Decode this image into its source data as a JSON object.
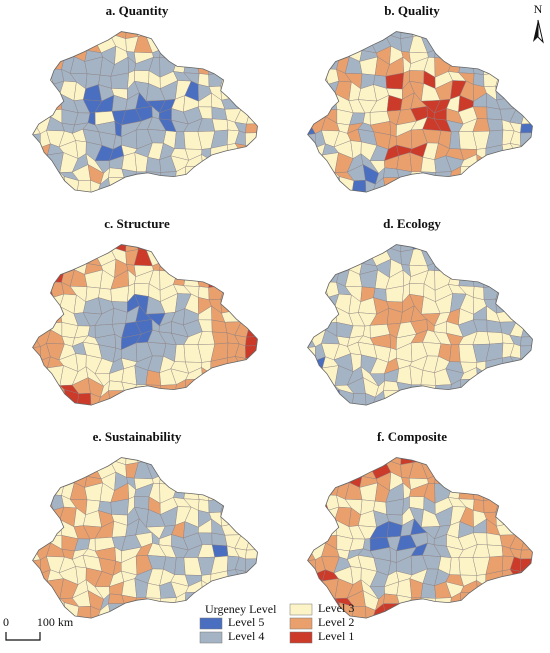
{
  "panels": [
    {
      "title": "a. Quantity"
    },
    {
      "title": "b. Quality"
    },
    {
      "title": "c. Structure"
    },
    {
      "title": "d. Ecology"
    },
    {
      "title": "e. Sustainability"
    },
    {
      "title": "f. Composite"
    }
  ],
  "north": "N",
  "scale_bar": {
    "start": "0",
    "end": "100 km"
  },
  "legend": {
    "title": "Urgeney Level",
    "items": [
      {
        "label": "Level 5",
        "color": "#4a6fc0"
      },
      {
        "label": "Level 4",
        "color": "#a4b4c4"
      },
      {
        "label": "Level 3",
        "color": "#fcf4c6"
      },
      {
        "label": "Level 2",
        "color": "#e9a06d"
      },
      {
        "label": "Level 1",
        "color": "#cc3a29"
      }
    ]
  }
}
